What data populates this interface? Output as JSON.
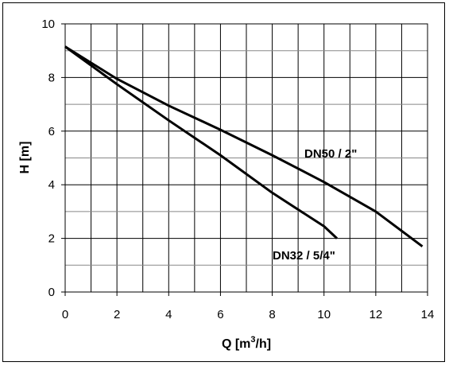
{
  "chart_data": {
    "type": "line",
    "xlabel": "Q [m³/h]",
    "xlabel_base": "Q [m",
    "xlabel_sup": "3",
    "xlabel_tail": "/h]",
    "ylabel": "H [m]",
    "xlim": [
      0,
      14
    ],
    "ylim": [
      0,
      10
    ],
    "x_ticks": [
      0,
      2,
      4,
      6,
      8,
      10,
      12,
      14
    ],
    "y_ticks": [
      0,
      2,
      4,
      6,
      8,
      10
    ],
    "x_grid_step": 1,
    "y_grid_step": 1,
    "grid": true,
    "series": [
      {
        "name": "DN50 / 2\"",
        "x": [
          0,
          2,
          4,
          6,
          8,
          10,
          12,
          13.8
        ],
        "y": [
          9.15,
          7.95,
          6.95,
          6.05,
          5.1,
          4.1,
          3.0,
          1.7
        ]
      },
      {
        "name": "DN32 / 5/4\"",
        "x": [
          0,
          2,
          4,
          6,
          8,
          10,
          10.5
        ],
        "y": [
          9.15,
          7.75,
          6.4,
          5.1,
          3.7,
          2.45,
          2.0
        ]
      }
    ]
  }
}
